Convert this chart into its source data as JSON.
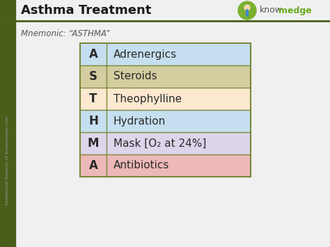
{
  "title": "Asthma Treatment",
  "mnemonic_label": "Mnemonic: “ASTHMA”",
  "bg_color": "#f0f0f0",
  "left_bar_color": "#4a5e1a",
  "title_color": "#1a1a1a",
  "mnemonic_color": "#555555",
  "watermark_text": "Intellectual Property of Knowmedge.com",
  "rows": [
    {
      "letter": "A",
      "text": "Adrenergics",
      "row_color": "#c5dff0",
      "letter_color": "#2a2a2a"
    },
    {
      "letter": "S",
      "text": "Steroids",
      "row_color": "#d4cda0",
      "letter_color": "#2a2a2a"
    },
    {
      "letter": "T",
      "text": "Theophylline",
      "row_color": "#fde8d0",
      "letter_color": "#2a2a2a"
    },
    {
      "letter": "H",
      "text": "Hydration",
      "row_color": "#c5dff0",
      "letter_color": "#2a2a2a"
    },
    {
      "letter": "M",
      "text": "Mask [O₂ at 24%]",
      "row_color": "#ddd5ea",
      "letter_color": "#2a2a2a"
    },
    {
      "letter": "A",
      "text": "Antibiotics",
      "row_color": "#edb8b8",
      "letter_color": "#2a2a2a"
    }
  ],
  "table_border_color": "#7a8a3a",
  "table_divider_color": "#7a8a3a",
  "knowmedge_color_know": "#555555",
  "knowmedge_color_medge": "#6aaa20",
  "logo_circle_color": "#7ab030"
}
